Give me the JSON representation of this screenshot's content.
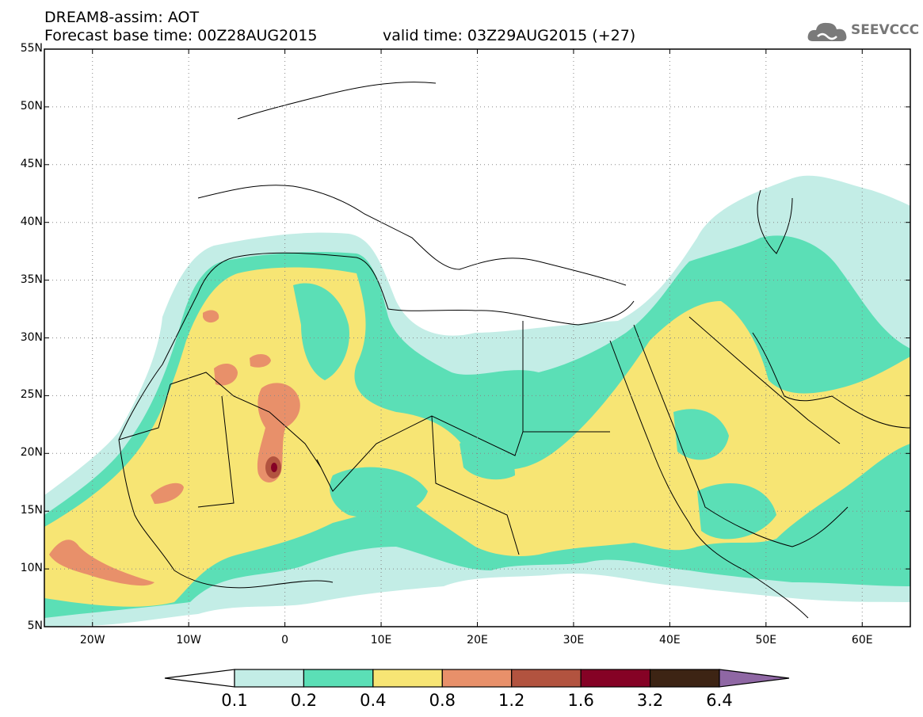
{
  "header": {
    "title_line1": "DREAM8-assim: AOT",
    "base_time": "Forecast base time: 00Z28AUG2015",
    "valid_time": "valid time: 03Z29AUG2015 (+27)",
    "logo_text": "SEEVCCC",
    "logo_icon": "cloud-icon"
  },
  "axes": {
    "lat_labels": [
      "55N",
      "50N",
      "45N",
      "40N",
      "35N",
      "30N",
      "25N",
      "20N",
      "15N",
      "10N",
      "5N"
    ],
    "lat_values": [
      55,
      50,
      45,
      40,
      35,
      30,
      25,
      20,
      15,
      10,
      5
    ],
    "lon_labels": [
      "20W",
      "10W",
      "0",
      "10E",
      "20E",
      "30E",
      "40E",
      "50E",
      "60E"
    ],
    "lon_values": [
      -20,
      -10,
      0,
      10,
      20,
      30,
      40,
      50,
      60
    ],
    "lon_range": [
      -25,
      65
    ],
    "lat_range": [
      5,
      55
    ],
    "grid": "dotted"
  },
  "colorbar": {
    "labels": [
      "0.1",
      "0.2",
      "0.4",
      "0.8",
      "1.2",
      "1.6",
      "3.2",
      "6.4"
    ],
    "colors": [
      "#ffffff",
      "#c3ede6",
      "#5bdfb6",
      "#f7e574",
      "#e8906a",
      "#b2533f",
      "#850225",
      "#3d2414",
      "#8f67a4"
    ]
  }
}
